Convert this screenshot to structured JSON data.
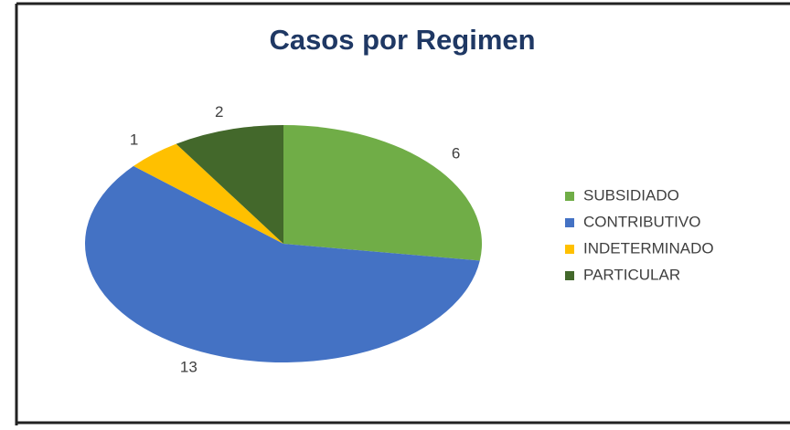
{
  "chart_data": {
    "type": "pie",
    "title": "Casos por Regimen",
    "categories": [
      "SUBSIDIADO",
      "CONTRIBUTIVO",
      "INDETERMINADO",
      "PARTICULAR"
    ],
    "values": [
      6,
      13,
      1,
      2
    ],
    "colors": [
      "#70ad47",
      "#4472c4",
      "#ffc000",
      "#43682b"
    ],
    "legend": "right"
  }
}
